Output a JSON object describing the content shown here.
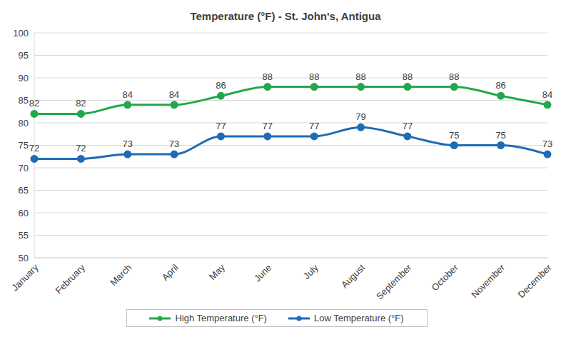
{
  "chart_data": {
    "type": "line",
    "title": "Temperature (°F) - St. John's, Antigua",
    "categories": [
      "January",
      "February",
      "March",
      "April",
      "May",
      "June",
      "July",
      "August",
      "September",
      "October",
      "November",
      "December"
    ],
    "series": [
      {
        "name": "High Temperature (°F)",
        "color": "#22a84a",
        "values": [
          82,
          82,
          84,
          84,
          86,
          88,
          88,
          88,
          88,
          88,
          86,
          84
        ]
      },
      {
        "name": "Low Temperature (°F)",
        "color": "#1f6bb5",
        "values": [
          72,
          72,
          73,
          73,
          77,
          77,
          77,
          79,
          77,
          75,
          75,
          73
        ]
      }
    ],
    "ylim": [
      50,
      100
    ],
    "yticks": [
      50,
      55,
      60,
      65,
      70,
      75,
      80,
      85,
      90,
      95,
      100
    ],
    "grid": true,
    "data_labels": true,
    "legend": "bottom",
    "marker": "circle"
  }
}
